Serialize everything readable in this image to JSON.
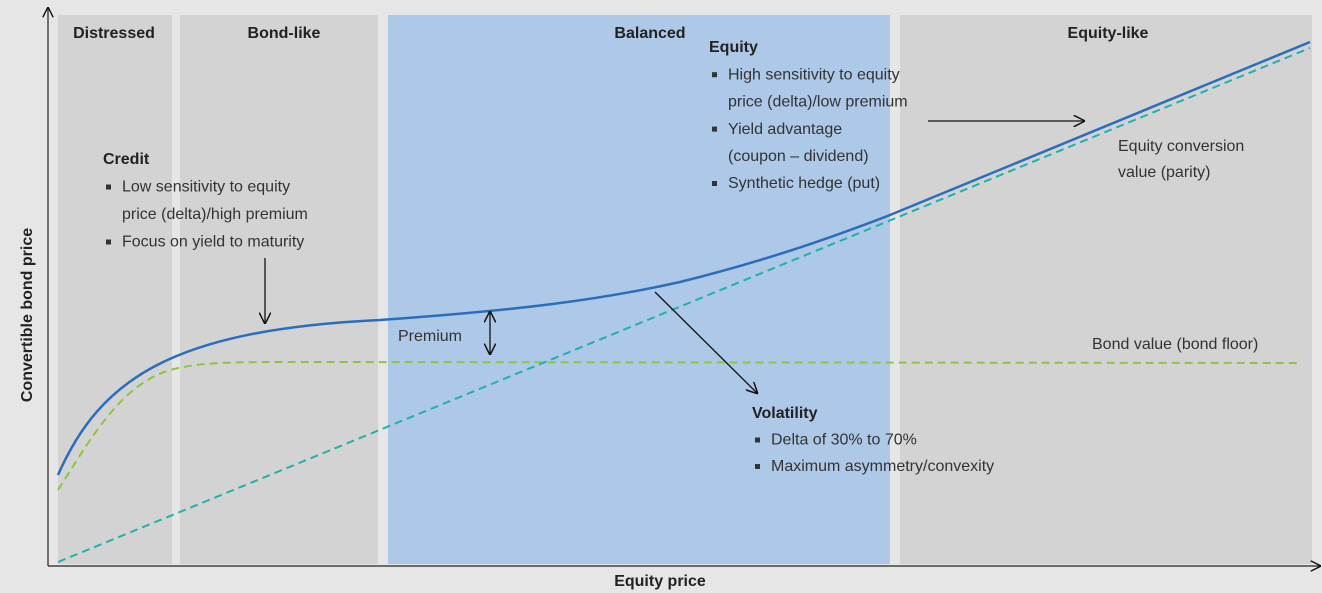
{
  "zones": [
    {
      "label": "Distressed"
    },
    {
      "label": "Bond-like"
    },
    {
      "label": "Balanced"
    },
    {
      "label": "Equity-like"
    }
  ],
  "x_axis": {
    "label": "Equity price"
  },
  "y_axis": {
    "label": "Convertible bond price"
  },
  "annotations": {
    "credit": {
      "title": "Credit",
      "bullets": [
        {
          "lines": [
            "Low sensitivity to equity",
            "price (delta)/high premium"
          ]
        },
        {
          "lines": [
            "Focus on yield to maturity"
          ]
        }
      ]
    },
    "equity": {
      "title": "Equity",
      "bullets": [
        {
          "lines": [
            "High sensitivity to equity",
            "price (delta)/low premium"
          ]
        },
        {
          "lines": [
            "Yield advantage",
            "(coupon – dividend)"
          ]
        },
        {
          "lines": [
            "Synthetic hedge (put)"
          ]
        }
      ]
    },
    "volatility": {
      "title": "Volatility",
      "bullets": [
        {
          "lines": [
            "Delta of 30% to 70%"
          ]
        },
        {
          "lines": [
            "Maximum asymmetry/convexity"
          ]
        }
      ]
    }
  },
  "curve_labels": {
    "parity": [
      "Equity conversion",
      "value (parity)"
    ],
    "bond_floor": "Bond value (bond floor)",
    "premium": "Premium"
  }
}
